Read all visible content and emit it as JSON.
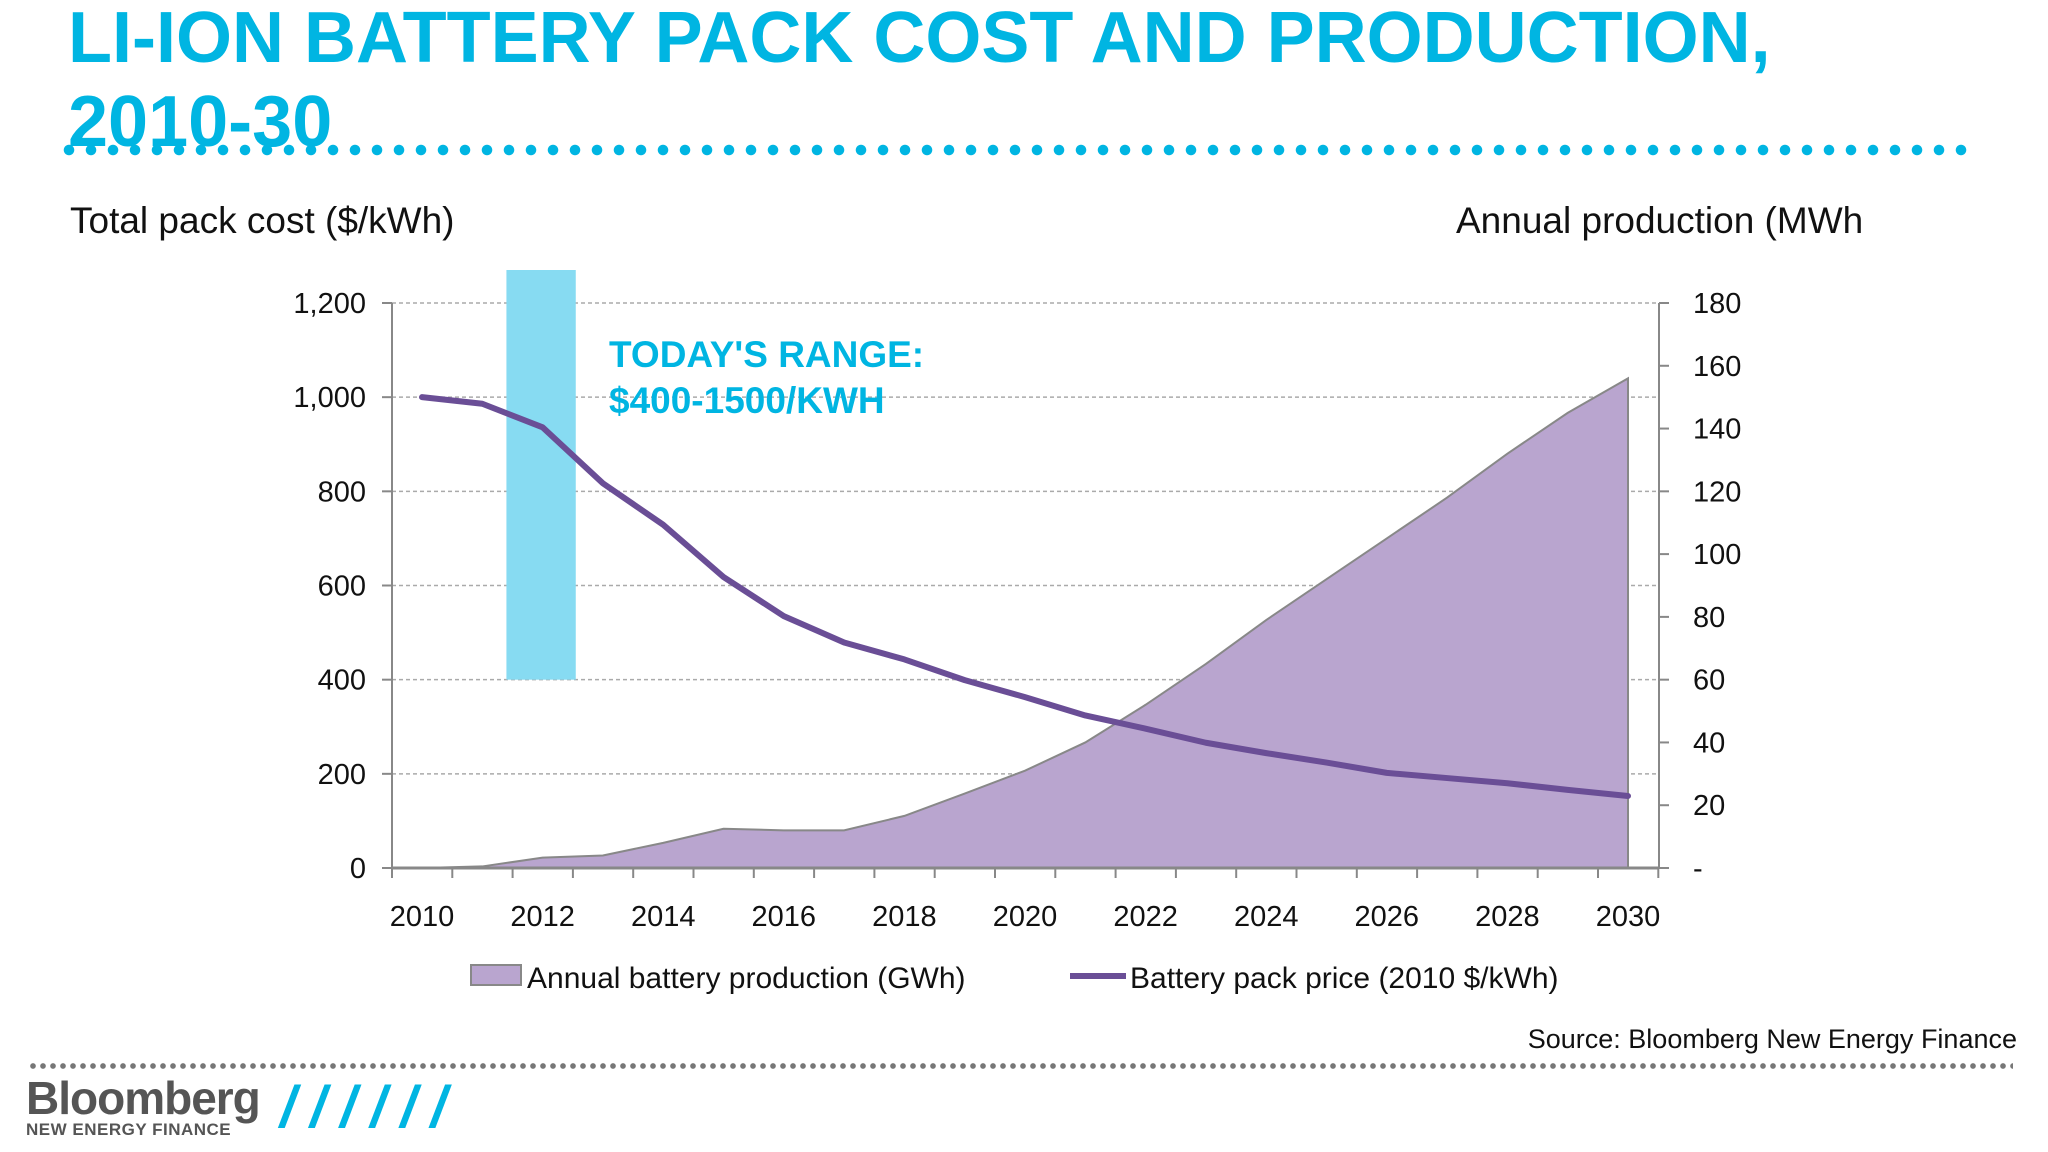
{
  "header": {
    "title": "LI-ION BATTERY PACK COST AND PRODUCTION, 2010-30"
  },
  "footer": {
    "source": "Source: Bloomberg New Energy Finance",
    "logo_text": "Bloomberg",
    "logo_subtext": "NEW ENERGY FINANCE",
    "decoration": "//////"
  },
  "colors": {
    "accent": "#00b5e2",
    "range_band": "#87dbf2",
    "area_fill": "#b9a5cf",
    "line": "#6a4e96"
  },
  "chart_data": {
    "type": "area+line",
    "ylabel_left": "Total pack cost ($/kWh)",
    "ylabel_right": "Annual production (MWh",
    "xlabel": "",
    "x": [
      2010,
      2011,
      2012,
      2013,
      2014,
      2015,
      2016,
      2017,
      2018,
      2019,
      2020,
      2021,
      2022,
      2023,
      2024,
      2025,
      2026,
      2027,
      2028,
      2029,
      2030
    ],
    "x_ticks": [
      "2010",
      "2012",
      "2014",
      "2016",
      "2018",
      "2020",
      "2022",
      "2024",
      "2026",
      "2028",
      "2030"
    ],
    "ylim_left": [
      0,
      1200
    ],
    "y_ticks_left": [
      "0",
      "200",
      "400",
      "600",
      "800",
      "1,000",
      "1,200"
    ],
    "ylim_right": [
      0,
      180
    ],
    "y_ticks_right": [
      "-",
      "20",
      "40",
      "60",
      "80",
      "100",
      "120",
      "140",
      "160",
      "180"
    ],
    "grid": true,
    "legend_position": "bottom",
    "series": [
      {
        "name": "Annual battery production (GWh)",
        "type": "area",
        "axis": "right",
        "values": [
          0,
          0.5,
          3.3,
          4,
          8,
          12.5,
          12,
          12,
          16.6,
          23.7,
          31,
          40,
          52,
          65,
          79,
          92,
          105,
          118,
          132,
          145,
          156
        ]
      },
      {
        "name": "Battery pack price (2010 $/kWh)",
        "type": "line",
        "axis": "left",
        "values": [
          1000,
          986,
          936,
          817,
          729,
          618,
          535,
          479,
          443,
          399,
          363,
          324,
          296,
          266,
          244,
          224,
          202,
          191,
          180,
          166,
          153
        ]
      }
    ],
    "annotation": {
      "line1": "TODAY'S RANGE:",
      "line2": "$400-1500/KWH",
      "x_range": [
        2011.4,
        2012.55
      ],
      "y_range_left": [
        400,
        1500
      ]
    }
  }
}
